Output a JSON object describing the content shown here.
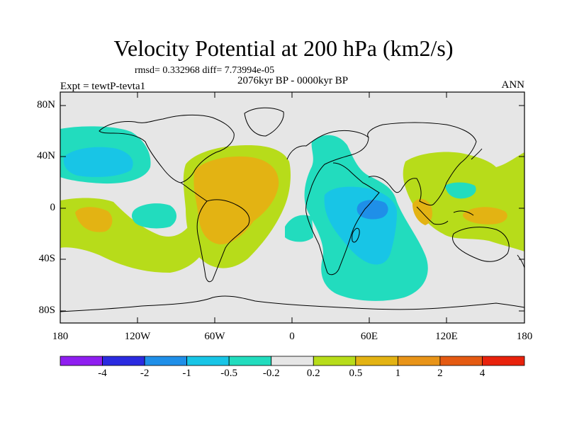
{
  "title": "Velocity Potential at 200 hPa (km2/s)",
  "stats": "rmsd= 0.332968 diff= 7.73994e-05",
  "period": "2076kyr BP - 0000kyr BP",
  "experiment": "Expt = tewtP-tevta1",
  "season": "ANN",
  "lat_labels": [
    "80N",
    "40N",
    "0",
    "40S",
    "80S"
  ],
  "lon_labels": [
    "180",
    "120W",
    "60W",
    "0",
    "60E",
    "120E",
    "180"
  ],
  "colorbar": {
    "colors": [
      "#8f1ef0",
      "#2b2be0",
      "#1f8fe8",
      "#18c5e6",
      "#22dcbe",
      "#e6e6e6",
      "#b7dc1a",
      "#e3b313",
      "#e89418",
      "#e45a12",
      "#e8220c"
    ],
    "labels": [
      "-4",
      "-2",
      "-1",
      "-0.5",
      "-0.2",
      "0.2",
      "0.5",
      "1",
      "2",
      "4"
    ]
  },
  "field_colors": {
    "background": "#e6e6e6",
    "neg_weak": "#22dcbe",
    "neg_mid": "#18c5e6",
    "neg_strong": "#1f8fe8",
    "pos_weak": "#b7dc1a",
    "pos_mid": "#e3b313",
    "pos_strong": "#e89418"
  }
}
